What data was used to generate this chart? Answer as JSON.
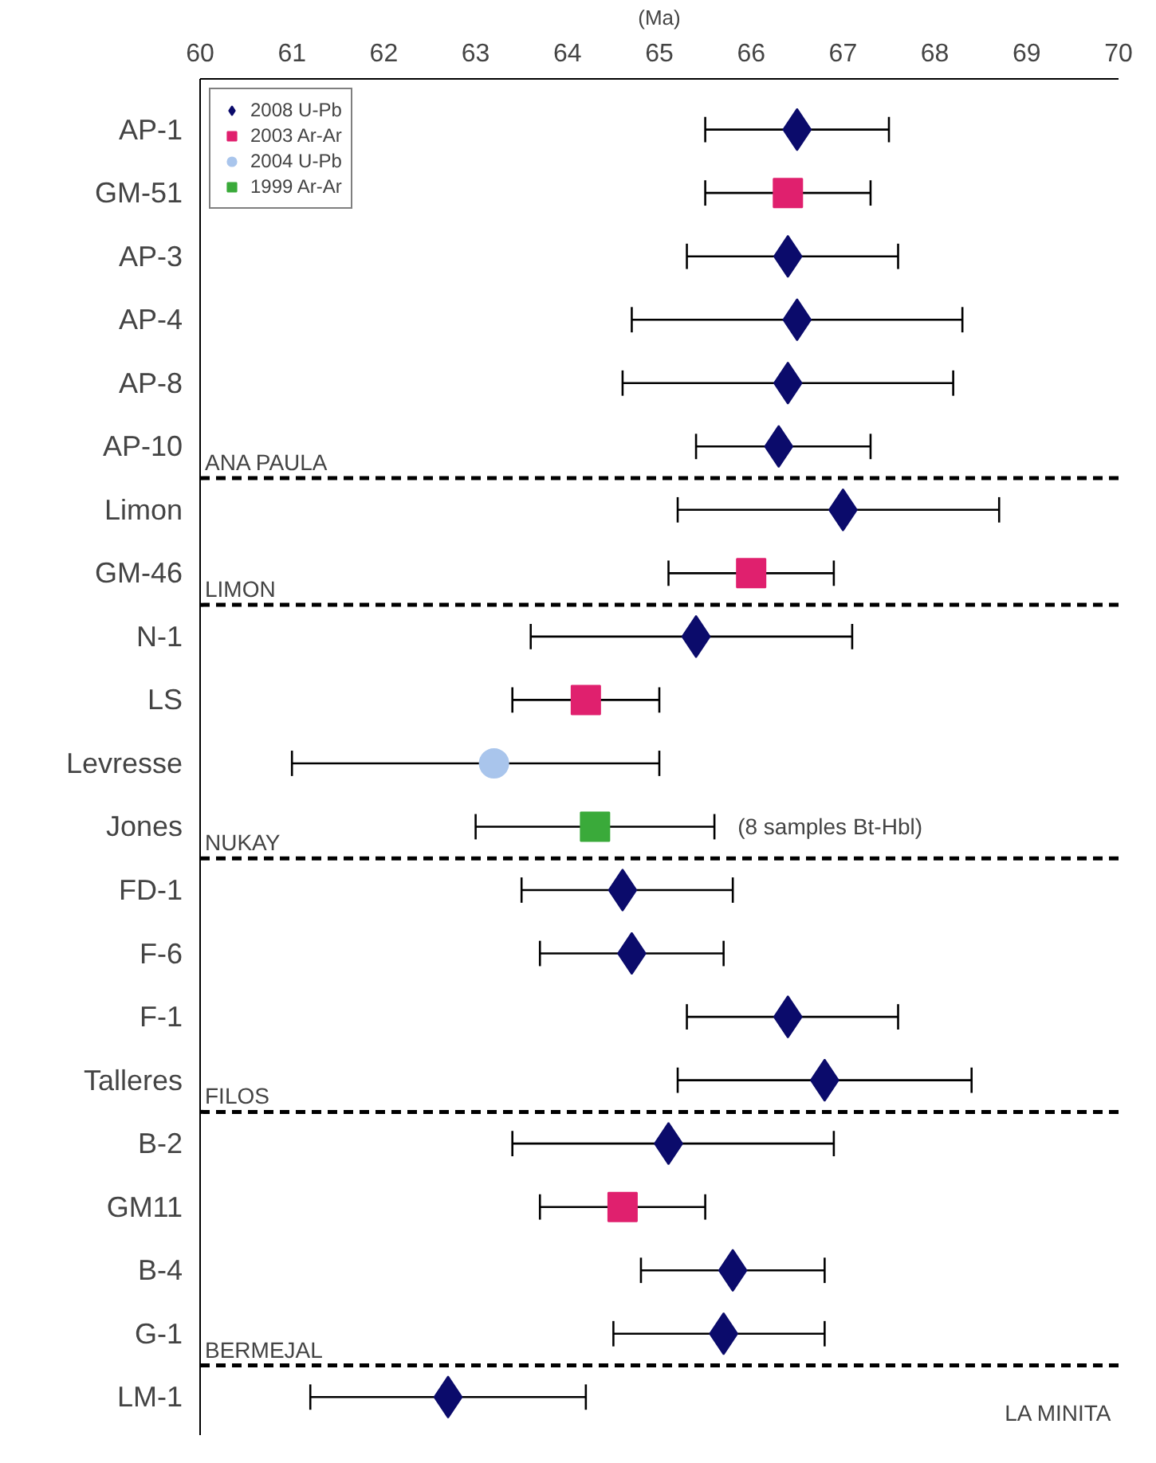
{
  "chart_data": {
    "type": "scatter",
    "orientation": "horizontal",
    "xlabel": "(Ma)",
    "categories": [
      "AP-1",
      "GM-51",
      "AP-3",
      "AP-4",
      "AP-8",
      "AP-10",
      "Limon",
      "GM-46",
      "N-1",
      "LS",
      "Levresse",
      "Jones",
      "FD-1",
      "F-6",
      "F-1",
      "Talleres",
      "B-2",
      "GM11",
      "B-4",
      "G-1",
      "LM-1"
    ],
    "xlim": [
      60,
      70
    ],
    "xticks": [
      60,
      61,
      62,
      63,
      64,
      65,
      66,
      67,
      68,
      69,
      70
    ],
    "legend": "top left",
    "series": [
      {
        "name": "2008 U-Pb",
        "color": "#0b0b6b",
        "marker": "diamond",
        "values": [
          66.5,
          null,
          66.4,
          66.5,
          66.4,
          66.3,
          67.0,
          null,
          65.4,
          null,
          null,
          null,
          64.6,
          64.7,
          66.4,
          66.8,
          65.1,
          null,
          65.8,
          65.7,
          62.7
        ],
        "errors": [
          [
            65.5,
            67.5
          ],
          null,
          [
            65.3,
            67.6
          ],
          [
            64.7,
            68.3
          ],
          [
            64.6,
            68.2
          ],
          [
            65.4,
            67.3
          ],
          [
            65.2,
            68.7
          ],
          null,
          [
            63.6,
            67.1
          ],
          null,
          null,
          null,
          [
            63.5,
            65.8
          ],
          [
            63.7,
            65.7
          ],
          [
            65.3,
            67.6
          ],
          [
            65.2,
            68.4
          ],
          [
            63.4,
            66.9
          ],
          null,
          [
            64.8,
            66.8
          ],
          [
            64.5,
            66.8
          ],
          [
            61.2,
            64.2
          ]
        ]
      },
      {
        "name": "2003 Ar-Ar",
        "color": "#e0206e",
        "marker": "square",
        "values": [
          null,
          66.4,
          null,
          null,
          null,
          null,
          null,
          66.0,
          null,
          64.2,
          null,
          null,
          null,
          null,
          null,
          null,
          null,
          64.6,
          null,
          null,
          null
        ],
        "errors": [
          null,
          [
            65.5,
            67.3
          ],
          null,
          null,
          null,
          null,
          null,
          [
            65.1,
            66.9
          ],
          null,
          [
            63.4,
            65.0
          ],
          null,
          null,
          null,
          null,
          null,
          null,
          null,
          [
            63.7,
            65.5
          ],
          null,
          null,
          null
        ]
      },
      {
        "name": "2004 U-Pb",
        "color": "#a9c5ec",
        "marker": "circle",
        "values": [
          null,
          null,
          null,
          null,
          null,
          null,
          null,
          null,
          null,
          null,
          63.2,
          null,
          null,
          null,
          null,
          null,
          null,
          null,
          null,
          null,
          null
        ],
        "errors": [
          null,
          null,
          null,
          null,
          null,
          null,
          null,
          null,
          null,
          null,
          [
            61.0,
            65.0
          ],
          null,
          null,
          null,
          null,
          null,
          null,
          null,
          null,
          null,
          null
        ]
      },
      {
        "name": "1999 Ar-Ar",
        "color": "#3aaa3a",
        "marker": "square",
        "values": [
          null,
          null,
          null,
          null,
          null,
          null,
          null,
          null,
          null,
          null,
          null,
          64.3,
          null,
          null,
          null,
          null,
          null,
          null,
          null,
          null,
          null
        ],
        "errors": [
          null,
          null,
          null,
          null,
          null,
          null,
          null,
          null,
          null,
          null,
          null,
          [
            63.0,
            65.6
          ],
          null,
          null,
          null,
          null,
          null,
          null,
          null,
          null,
          null
        ]
      }
    ],
    "annotations": [
      "ANA PAULA",
      "LIMON",
      "NUKAY",
      "(8 samples Bt-Hbl)",
      "FILOS",
      "BERMEJAL",
      "LA MINITA"
    ]
  }
}
